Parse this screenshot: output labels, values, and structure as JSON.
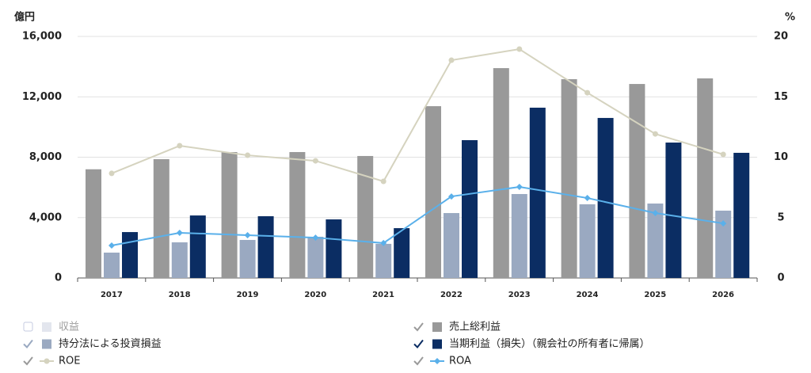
{
  "chart_data": {
    "type": "bar",
    "y_label": "億円",
    "y2_label": "%",
    "categories": [
      "2017",
      "2018",
      "2019",
      "2020",
      "2021",
      "2022",
      "2023",
      "2024",
      "2025",
      "2026"
    ],
    "ylim": [
      0,
      16000
    ],
    "yticks": [
      0,
      {
        "value": 4000,
        "label": "4,000"
      },
      {
        "value": 8000,
        "label": "8,000"
      },
      {
        "value": 12000,
        "label": "12,000"
      },
      {
        "value": 16000,
        "label": "16,000"
      }
    ],
    "y2lim": [
      0,
      20
    ],
    "y2ticks": [
      0,
      5,
      10,
      15,
      20
    ],
    "grid": true,
    "series": [
      {
        "name": "収益",
        "type": "bar",
        "color": "#e3e6ee",
        "visible": false,
        "values": [
          null,
          null,
          null,
          null,
          null,
          null,
          null,
          null,
          null,
          null
        ]
      },
      {
        "name": "売上総利益",
        "type": "bar",
        "color": "#999999",
        "visible": true,
        "values": [
          7200,
          7870,
          8340,
          8340,
          8080,
          11380,
          13900,
          13170,
          12850,
          13220
        ]
      },
      {
        "name": "持分法による投資損益",
        "type": "bar",
        "color": "#9aa9c1",
        "visible": true,
        "values": [
          1680,
          2360,
          2520,
          2730,
          2260,
          4300,
          5560,
          4880,
          4930,
          4460
        ]
      },
      {
        "name": "当期利益（損失）（親会社の所有者に帰属）",
        "type": "bar",
        "color": "#0b2d63",
        "visible": true,
        "values": [
          3040,
          4140,
          4090,
          3880,
          3300,
          9130,
          11280,
          10600,
          8970,
          8290
        ]
      },
      {
        "name": "ROE",
        "type": "line",
        "axis": "y2",
        "marker": "circle",
        "color": "#d5d3bf",
        "visible": true,
        "values": [
          8.66,
          10.95,
          10.16,
          9.7,
          8.0,
          18.03,
          18.95,
          15.34,
          11.93,
          10.23
        ]
      },
      {
        "name": "ROA",
        "type": "line",
        "axis": "y2",
        "marker": "diamond",
        "color": "#5ab0ea",
        "visible": true,
        "values": [
          2.69,
          3.74,
          3.54,
          3.34,
          2.89,
          6.75,
          7.54,
          6.62,
          5.38,
          4.52
        ]
      }
    ]
  }
}
